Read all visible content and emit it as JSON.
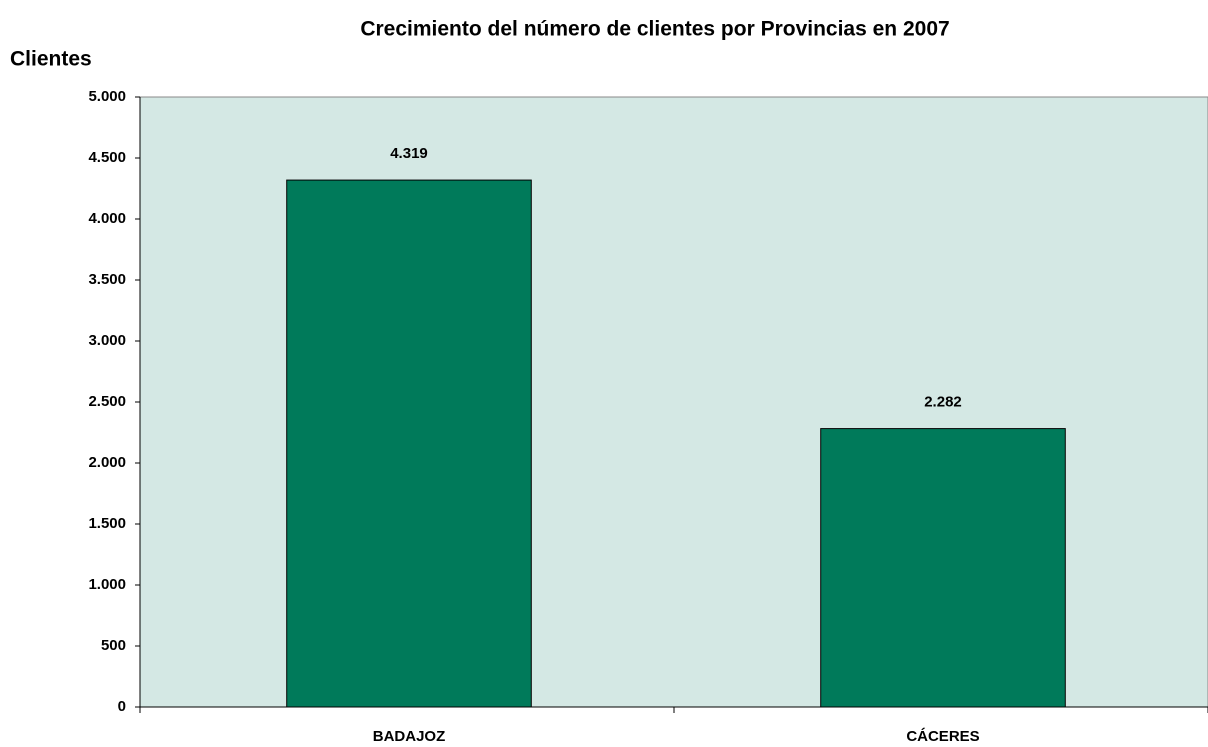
{
  "chart_data": {
    "type": "bar",
    "title": "Crecimiento del número de clientes por Provincias en 2007",
    "y_label": "Clientes",
    "categories": [
      "BADAJOZ",
      "CÁCERES"
    ],
    "values": [
      4319,
      2282
    ],
    "value_labels": [
      "4.319",
      "2.282"
    ],
    "color": "#007a5a",
    "ylim": [
      0,
      5000
    ],
    "yticks": [
      0,
      500,
      {
        "value": 1000,
        "label": "1.000"
      },
      {
        "value": 1500,
        "label": "1.500"
      },
      {
        "value": 2000,
        "label": "2.000"
      },
      {
        "value": 2500,
        "label": "2.500"
      },
      {
        "value": 3000,
        "label": "3.000"
      },
      {
        "value": 3500,
        "label": "3.500"
      },
      {
        "value": 4000,
        "label": "4.000"
      },
      {
        "value": 4500,
        "label": "4.500"
      },
      {
        "value": 5000,
        "label": "5.000"
      }
    ],
    "grid": false
  }
}
